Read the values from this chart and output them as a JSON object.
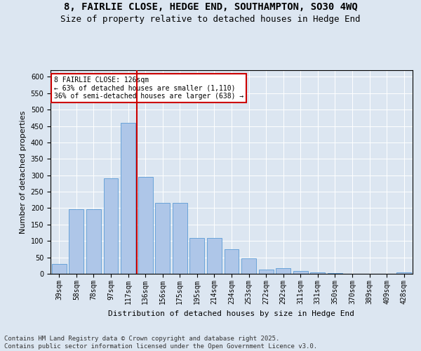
{
  "title_line1": "8, FAIRLIE CLOSE, HEDGE END, SOUTHAMPTON, SO30 4WQ",
  "title_line2": "Size of property relative to detached houses in Hedge End",
  "xlabel": "Distribution of detached houses by size in Hedge End",
  "ylabel": "Number of detached properties",
  "categories": [
    "39sqm",
    "58sqm",
    "78sqm",
    "97sqm",
    "117sqm",
    "136sqm",
    "156sqm",
    "175sqm",
    "195sqm",
    "214sqm",
    "234sqm",
    "253sqm",
    "272sqm",
    "292sqm",
    "311sqm",
    "331sqm",
    "350sqm",
    "370sqm",
    "389sqm",
    "409sqm",
    "428sqm"
  ],
  "values": [
    30,
    197,
    197,
    290,
    460,
    295,
    215,
    215,
    110,
    110,
    75,
    47,
    13,
    18,
    8,
    5,
    3,
    0,
    0,
    0,
    5
  ],
  "bar_color": "#aec6e8",
  "bar_edge_color": "#5b9bd5",
  "vline_x": 4.5,
  "vline_color": "#cc0000",
  "annotation_text": "8 FAIRLIE CLOSE: 126sqm\n← 63% of detached houses are smaller (1,110)\n36% of semi-detached houses are larger (638) →",
  "annotation_box_color": "#ffffff",
  "annotation_box_edge": "#cc0000",
  "ylim": [
    0,
    620
  ],
  "yticks": [
    0,
    50,
    100,
    150,
    200,
    250,
    300,
    350,
    400,
    450,
    500,
    550,
    600
  ],
  "background_color": "#dce6f1",
  "plot_bg_color": "#dce6f1",
  "footer_line1": "Contains HM Land Registry data © Crown copyright and database right 2025.",
  "footer_line2": "Contains public sector information licensed under the Open Government Licence v3.0.",
  "title_fontsize": 10,
  "subtitle_fontsize": 9,
  "label_fontsize": 8,
  "tick_fontsize": 7,
  "annot_fontsize": 7,
  "footer_fontsize": 6.5
}
